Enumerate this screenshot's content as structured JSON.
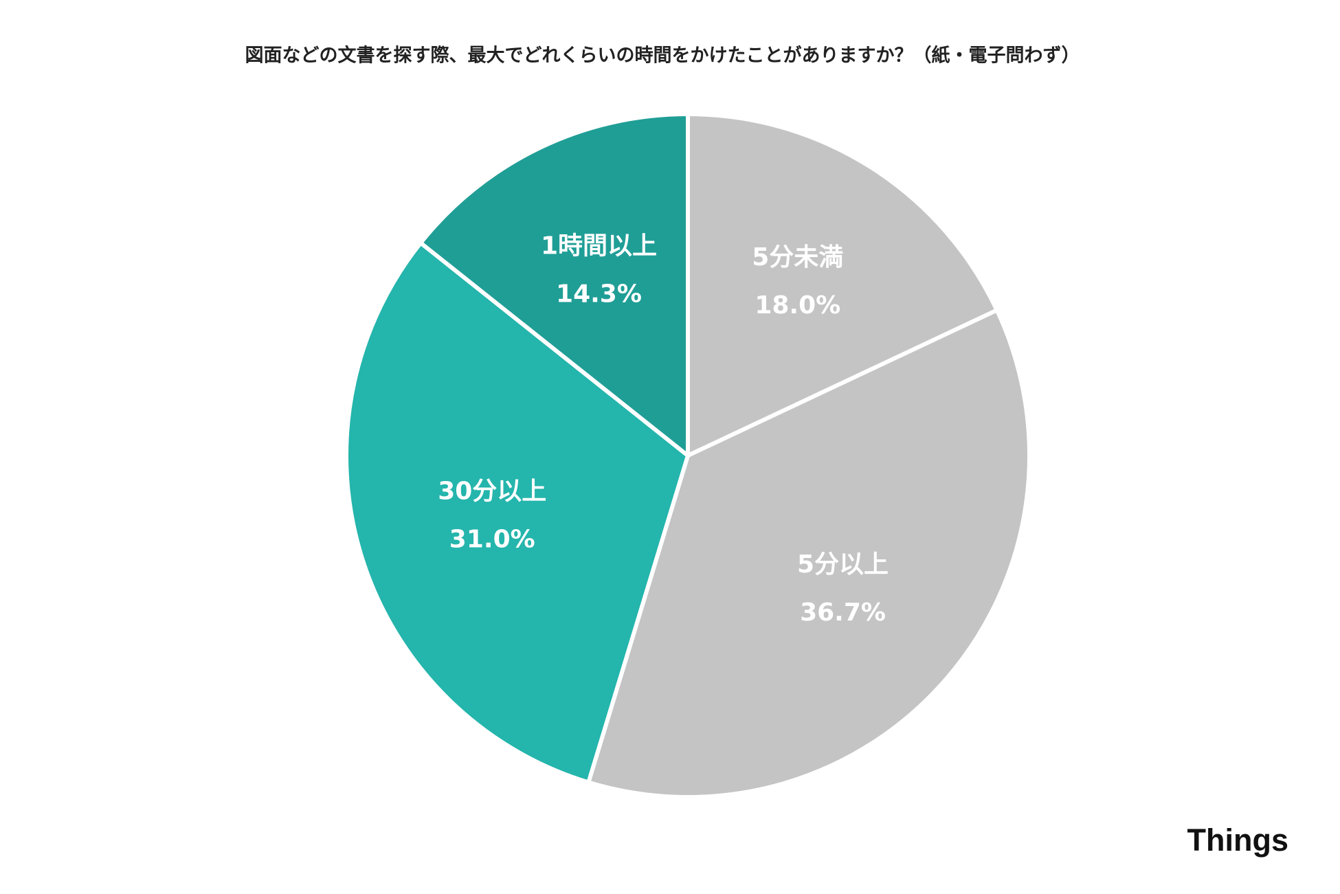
{
  "chart_data": {
    "type": "pie",
    "title": "図面などの文書を探す際、最大でどれくらいの時間をかけたことがありますか？（紙・電子問わず）",
    "categories": [
      "5分未満",
      "5分以上",
      "30分以上",
      "1時間以上"
    ],
    "values": [
      18.0,
      36.7,
      31.0,
      14.3
    ],
    "value_labels": [
      "18.0%",
      "36.7%",
      "31.0%",
      "14.3%"
    ],
    "colors": [
      "#c4c4c4",
      "#c4c4c4",
      "#24b5ac",
      "#1f9e96"
    ]
  },
  "logo": "Things"
}
